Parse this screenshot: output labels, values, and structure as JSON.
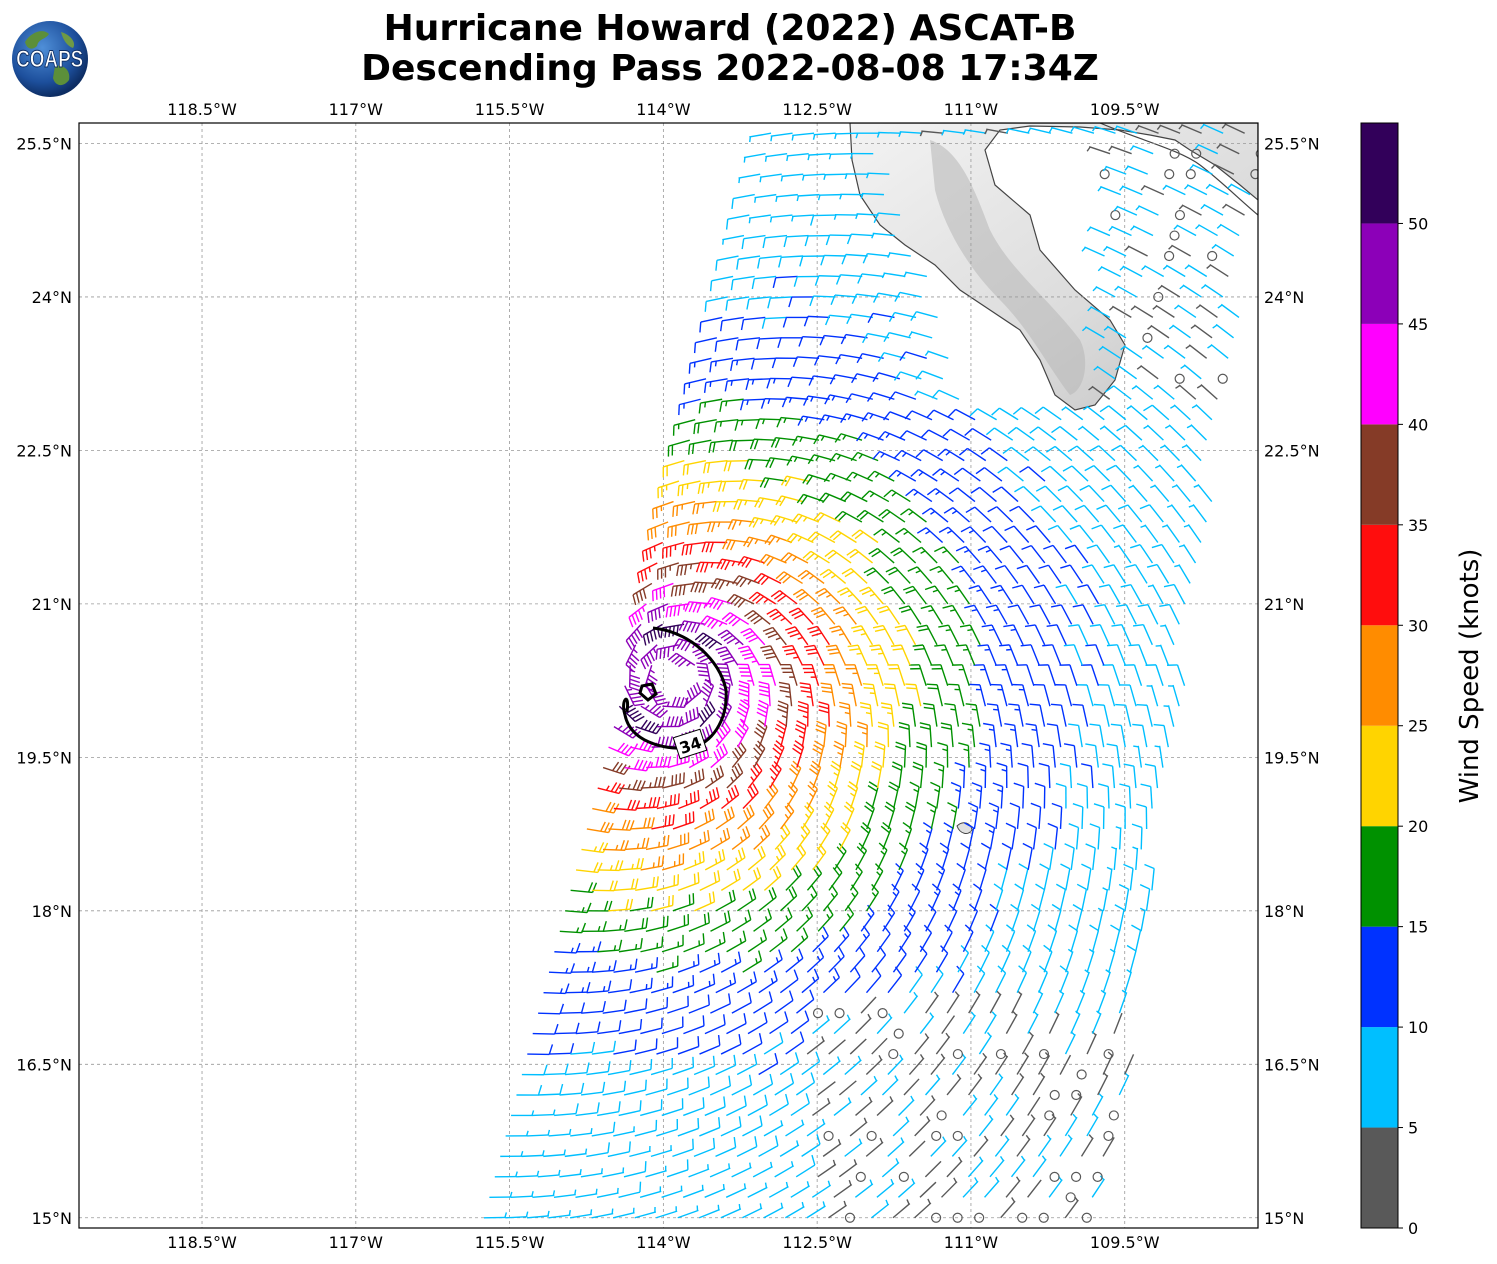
{
  "logo": {
    "text": "COAPS",
    "icon": "globe-icon"
  },
  "title": {
    "line1": "Hurricane Howard (2022) ASCAT-B",
    "line2": "Descending Pass 2022-08-08 17:34Z"
  },
  "chart_data": {
    "type": "map",
    "lon_range": [
      -119.7,
      -108.2
    ],
    "lat_range": [
      14.9,
      25.7
    ],
    "lon_ticks": [
      "118.5°W",
      "117°W",
      "115.5°W",
      "114°W",
      "112.5°W",
      "111°W",
      "109.5°W"
    ],
    "lon_tick_values": [
      -118.5,
      -117,
      -115.5,
      -114,
      -112.5,
      -111,
      -109.5
    ],
    "lat_ticks": [
      "25.5°N",
      "24°N",
      "22.5°N",
      "21°N",
      "19.5°N",
      "18°N",
      "16.5°N",
      "15°N"
    ],
    "lat_tick_values": [
      25.5,
      24,
      22.5,
      21,
      19.5,
      18,
      16.5,
      15
    ],
    "grid": true,
    "storm_center": {
      "lon": -113.9,
      "lat": 20.25
    },
    "contour": {
      "label": "34",
      "units": "knots"
    },
    "colorbar": {
      "title": "Wind Speed (knots)",
      "ticks": [
        "0",
        "5",
        "10",
        "15",
        "20",
        "25",
        "30",
        "35",
        "40",
        "45",
        "50"
      ],
      "bins": [
        {
          "min": 0,
          "max": 5,
          "color": "#595959"
        },
        {
          "min": 5,
          "max": 10,
          "color": "#00bfff"
        },
        {
          "min": 10,
          "max": 15,
          "color": "#0032ff"
        },
        {
          "min": 15,
          "max": 20,
          "color": "#009100"
        },
        {
          "min": 20,
          "max": 25,
          "color": "#ffd400"
        },
        {
          "min": 25,
          "max": 30,
          "color": "#ff8c00"
        },
        {
          "min": 30,
          "max": 35,
          "color": "#ff0d0d"
        },
        {
          "min": 35,
          "max": 40,
          "color": "#853b27"
        },
        {
          "min": 40,
          "max": 45,
          "color": "#ff00ff"
        },
        {
          "min": 45,
          "max": 50,
          "color": "#8c00b8"
        },
        {
          "min": 50,
          "max": 55,
          "color": "#32005a"
        }
      ]
    }
  }
}
